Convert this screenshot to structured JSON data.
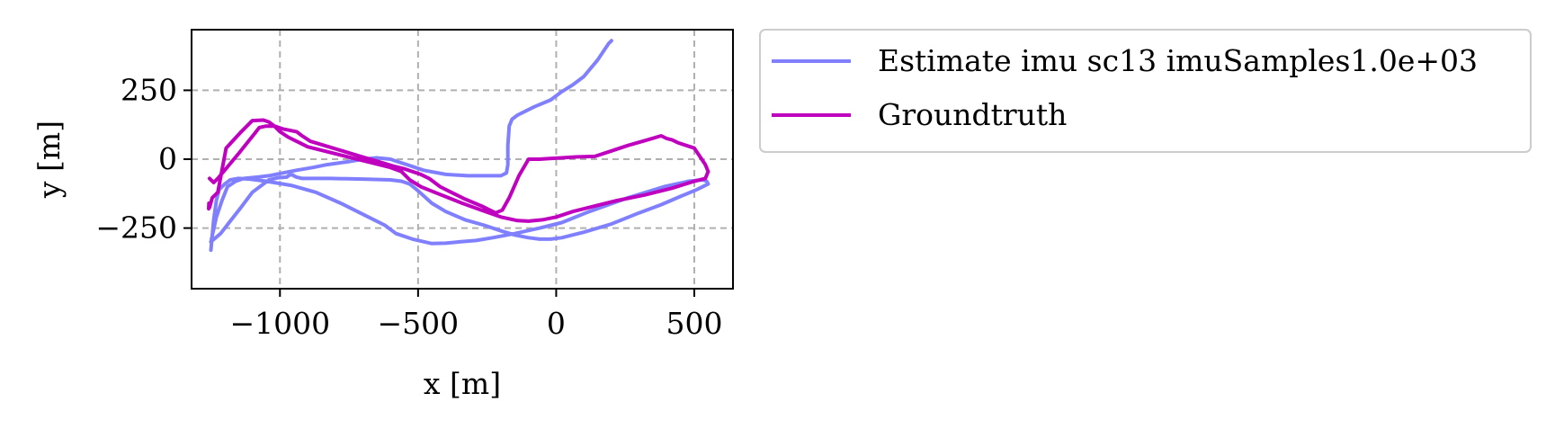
{
  "chart_data": {
    "type": "line",
    "title": "",
    "xlabel": "x [m]",
    "ylabel": "y [m]",
    "xlim": [
      -1320,
      640
    ],
    "ylim": [
      -470,
      470
    ],
    "xticks": [
      -1000,
      -500,
      0,
      500
    ],
    "xtick_labels": [
      "−1000",
      "−500",
      "0",
      "500"
    ],
    "yticks": [
      -250,
      0,
      250
    ],
    "ytick_labels": [
      "−250",
      "0",
      "250"
    ],
    "grid": true,
    "legend_position": "outside-right-top",
    "series": [
      {
        "name": "Estimate imu sc13 imuSamples1.0e+03",
        "color": "#8080ff",
        "x": [
          200,
          190,
          150,
          100,
          60,
          20,
          -20,
          -80,
          -140,
          -160,
          -170,
          -175,
          -175,
          -180,
          -200,
          -250,
          -320,
          -400,
          -480,
          -540,
          -570,
          -600,
          -650,
          -700,
          -760,
          -830,
          -880,
          -940,
          -990,
          -1040,
          -1080,
          -1130,
          -1160,
          -1190,
          -1210,
          -1230,
          -1250,
          -1215,
          -1180,
          -1145,
          -1100,
          -1040,
          -1010,
          -975,
          -970,
          -955,
          -950,
          -940,
          -920,
          -900,
          -820,
          -700,
          -600,
          -560,
          -530,
          -500,
          -450,
          -400,
          -330,
          -260,
          -200,
          -150,
          -100,
          -60,
          -20,
          20,
          100,
          200,
          300,
          380,
          450,
          510,
          550,
          545,
          530,
          480,
          390,
          260,
          120,
          20,
          -60,
          -150,
          -230,
          -290,
          -350,
          -400,
          -450,
          -520,
          -580,
          -620,
          -680,
          -780,
          -870,
          -960,
          -1050,
          -1110,
          -1150,
          -1180,
          -1200,
          -1220,
          -1230,
          -1240,
          -1250
        ],
        "y": [
          430,
          420,
          360,
          300,
          270,
          245,
          215,
          190,
          160,
          145,
          120,
          50,
          -20,
          -50,
          -60,
          -60,
          -60,
          -55,
          -40,
          -20,
          -10,
          0,
          5,
          0,
          -10,
          -20,
          -30,
          -40,
          -50,
          -60,
          -65,
          -70,
          -80,
          -100,
          -150,
          -210,
          -300,
          -270,
          -225,
          -180,
          -120,
          -75,
          -68,
          -65,
          -60,
          -55,
          -60,
          -65,
          -70,
          -70,
          -70,
          -72,
          -75,
          -80,
          -90,
          -115,
          -160,
          -190,
          -220,
          -240,
          -260,
          -275,
          -285,
          -290,
          -290,
          -285,
          -265,
          -235,
          -195,
          -165,
          -135,
          -110,
          -90,
          -80,
          -75,
          -80,
          -100,
          -140,
          -190,
          -230,
          -250,
          -270,
          -285,
          -295,
          -300,
          -305,
          -306,
          -290,
          -270,
          -240,
          -210,
          -160,
          -120,
          -95,
          -80,
          -72,
          -70,
          -75,
          -90,
          -110,
          -150,
          -220,
          -330
        ]
      },
      {
        "name": "Groundtruth",
        "color": "#bf00bf",
        "x": [
          -1255,
          -1240,
          -1225,
          -1150,
          -1090,
          -1075,
          -1050,
          -1020,
          -990,
          -940,
          -920,
          -890,
          -840,
          -790,
          -740,
          -690,
          -640,
          -590,
          -550,
          -520,
          -490,
          -460,
          -440,
          -420,
          -380,
          -330,
          -270,
          -220,
          -195,
          -170,
          -135,
          -100,
          -95,
          -80,
          -60,
          -30,
          20,
          70,
          140,
          200,
          260,
          330,
          380,
          400,
          420,
          440,
          500,
          540,
          550,
          540,
          500,
          420,
          320,
          220,
          140,
          60,
          0,
          -50,
          -100,
          -140,
          -200,
          -270,
          -340,
          -390,
          -440,
          -490,
          -530,
          -560,
          -600,
          -660,
          -720,
          -780,
          -840,
          -900,
          -930,
          -950,
          -970,
          -1000,
          -1020,
          -1040,
          -1060,
          -1100,
          -1140,
          -1195,
          -1210,
          -1225,
          -1245,
          -1255,
          -1258,
          -1257
        ],
        "y": [
          -70,
          -85,
          -70,
          20,
          95,
          115,
          120,
          120,
          110,
          100,
          85,
          65,
          50,
          35,
          20,
          5,
          -10,
          -25,
          -35,
          -45,
          -55,
          -70,
          -85,
          -100,
          -120,
          -145,
          -170,
          -195,
          -185,
          -140,
          -60,
          0,
          0,
          0,
          0,
          2,
          5,
          8,
          10,
          30,
          50,
          70,
          85,
          75,
          70,
          60,
          40,
          -20,
          -45,
          -70,
          -80,
          -105,
          -130,
          -150,
          -170,
          -190,
          -210,
          -220,
          -225,
          -223,
          -210,
          -185,
          -160,
          -140,
          -120,
          -100,
          -75,
          -45,
          -30,
          -15,
          0,
          15,
          30,
          45,
          60,
          70,
          80,
          100,
          120,
          135,
          142,
          140,
          100,
          40,
          -40,
          -120,
          -140,
          -175,
          -180,
          -160
        ]
      }
    ]
  }
}
